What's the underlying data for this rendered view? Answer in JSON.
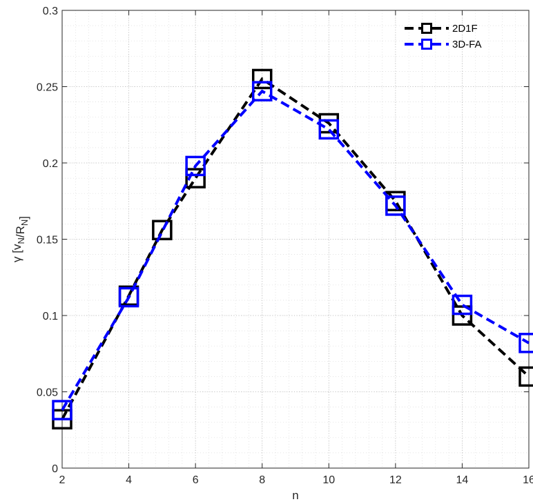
{
  "chart_data": {
    "type": "line",
    "xlabel": "n",
    "ylabel": "γ [v_N/R_N]",
    "xlim": [
      2,
      16
    ],
    "ylim": [
      0,
      0.3
    ],
    "x_ticks": [
      2,
      4,
      6,
      8,
      10,
      12,
      14,
      16
    ],
    "x_tick_labels": [
      "2",
      "4",
      "6",
      "8",
      "10",
      "12",
      "14",
      "16"
    ],
    "y_ticks": [
      0,
      0.05,
      0.1,
      0.15,
      0.2,
      0.25,
      0.3
    ],
    "y_tick_labels": [
      "0",
      "0.05",
      "0.1",
      "0.15",
      "0.2",
      "0.25",
      "0.3"
    ],
    "grid": "major and minor, dotted",
    "legend_position": "top-right",
    "marker": "square",
    "line_style": "dashed",
    "series": [
      {
        "name": "2D1F",
        "color": "#000000",
        "x": [
          2,
          4,
          5,
          6,
          8,
          10,
          12,
          14,
          16
        ],
        "y": [
          0.032,
          0.113,
          0.156,
          0.19,
          0.255,
          0.226,
          0.175,
          0.1,
          0.06
        ]
      },
      {
        "name": "3D-FA",
        "color": "#0000ff",
        "x": [
          2,
          4,
          6,
          8,
          10,
          12,
          14,
          16
        ],
        "y": [
          0.038,
          0.112,
          0.198,
          0.247,
          0.222,
          0.172,
          0.107,
          0.082
        ]
      }
    ]
  }
}
